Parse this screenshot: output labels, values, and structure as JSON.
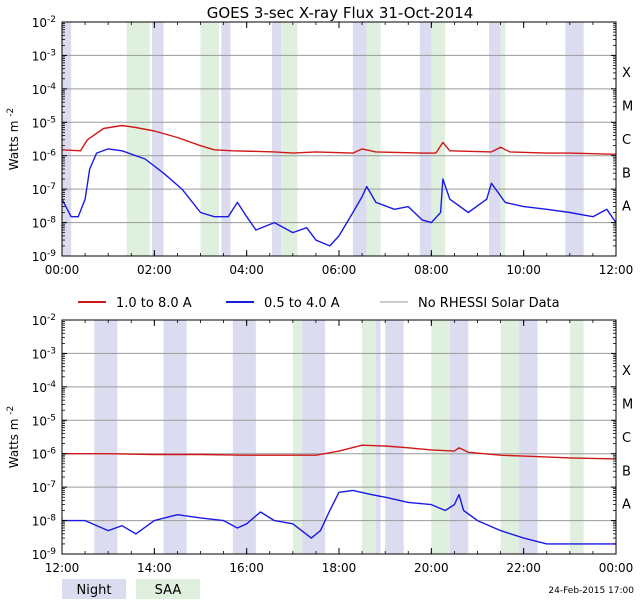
{
  "title": "GOES 3-sec X-ray Flux   31-Oct-2014",
  "footer_timestamp": "24-Feb-2015 17:00",
  "ylabel_main": "Watts m",
  "ylabel_sup": "-2",
  "legend": {
    "red": "1.0 to 8.0 A",
    "blue": "0.5 to 4.0 A",
    "gray": "No RHESSI Solar Data"
  },
  "bottom_legend": {
    "night": "Night",
    "saa": "SAA"
  },
  "colors": {
    "red": "#d01818",
    "blue": "#1a1ae6",
    "gray": "#999999",
    "night": "#dcdcf0",
    "saa": "#dff0df",
    "grid": "#9a9a9a",
    "axis": "#000000"
  },
  "chart_data": [
    {
      "type": "line",
      "panel": "top",
      "x_range_hours": [
        0,
        12
      ],
      "x_ticks": [
        "00:00",
        "02:00",
        "04:00",
        "06:00",
        "08:00",
        "10:00",
        "12:00"
      ],
      "y_scale": "log",
      "y_range": [
        1e-09,
        0.01
      ],
      "y_ticks": [
        "10^-9",
        "10^-8",
        "10^-7",
        "10^-6",
        "10^-5",
        "10^-4",
        "10^-3",
        "10^-2"
      ],
      "class_labels": [
        "A",
        "B",
        "C",
        "M",
        "X"
      ],
      "night_intervals": [
        [
          0.0,
          0.2
        ],
        [
          1.95,
          2.2
        ],
        [
          3.45,
          3.65
        ],
        [
          4.55,
          4.75
        ],
        [
          6.3,
          6.6
        ],
        [
          7.75,
          8.05
        ],
        [
          9.25,
          9.5
        ],
        [
          10.9,
          11.3
        ]
      ],
      "saa_intervals": [
        [
          1.4,
          1.9
        ],
        [
          3.0,
          3.4
        ],
        [
          4.75,
          5.1
        ],
        [
          6.6,
          6.9
        ],
        [
          8.0,
          8.3
        ],
        [
          9.5,
          9.6
        ]
      ],
      "series": [
        {
          "name": "1.0 to 8.0 A",
          "color_key": "red",
          "points": [
            [
              0.0,
              1.5e-06
            ],
            [
              0.4,
              1.4e-06
            ],
            [
              0.55,
              3e-06
            ],
            [
              0.9,
              6.5e-06
            ],
            [
              1.3,
              8e-06
            ],
            [
              1.6,
              7e-06
            ],
            [
              2.0,
              5.5e-06
            ],
            [
              2.5,
              3.5e-06
            ],
            [
              3.0,
              2e-06
            ],
            [
              3.3,
              1.5e-06
            ],
            [
              3.7,
              1.4e-06
            ],
            [
              4.6,
              1.3e-06
            ],
            [
              5.0,
              1.2e-06
            ],
            [
              5.5,
              1.3e-06
            ],
            [
              6.3,
              1.2e-06
            ],
            [
              6.5,
              1.6e-06
            ],
            [
              6.8,
              1.3e-06
            ],
            [
              7.8,
              1.2e-06
            ],
            [
              8.1,
              1.2e-06
            ],
            [
              8.25,
              2.5e-06
            ],
            [
              8.4,
              1.4e-06
            ],
            [
              9.3,
              1.3e-06
            ],
            [
              9.5,
              1.8e-06
            ],
            [
              9.7,
              1.3e-06
            ],
            [
              10.5,
              1.2e-06
            ],
            [
              11.0,
              1.2e-06
            ],
            [
              12.0,
              1.1e-06
            ]
          ]
        },
        {
          "name": "0.5 to 4.0 A",
          "color_key": "blue",
          "points": [
            [
              0.0,
              5e-08
            ],
            [
              0.2,
              1.5e-08
            ],
            [
              0.35,
              1.5e-08
            ],
            [
              0.5,
              5e-08
            ],
            [
              0.6,
              4e-07
            ],
            [
              0.75,
              1.2e-06
            ],
            [
              1.0,
              1.6e-06
            ],
            [
              1.3,
              1.4e-06
            ],
            [
              1.8,
              8e-07
            ],
            [
              2.2,
              3e-07
            ],
            [
              2.6,
              1e-07
            ],
            [
              3.0,
              2e-08
            ],
            [
              3.3,
              1.5e-08
            ],
            [
              3.6,
              1.5e-08
            ],
            [
              3.8,
              4e-08
            ],
            [
              4.0,
              1.5e-08
            ],
            [
              4.2,
              6e-09
            ],
            [
              4.6,
              1e-08
            ],
            [
              5.0,
              5e-09
            ],
            [
              5.3,
              7e-09
            ],
            [
              5.5,
              3e-09
            ],
            [
              5.8,
              2e-09
            ],
            [
              6.0,
              4e-09
            ],
            [
              6.3,
              2e-08
            ],
            [
              6.5,
              6e-08
            ],
            [
              6.6,
              1.2e-07
            ],
            [
              6.8,
              4e-08
            ],
            [
              7.2,
              2.5e-08
            ],
            [
              7.5,
              3e-08
            ],
            [
              7.8,
              1.2e-08
            ],
            [
              8.0,
              1e-08
            ],
            [
              8.2,
              2e-08
            ],
            [
              8.25,
              2e-07
            ],
            [
              8.4,
              5e-08
            ],
            [
              8.8,
              2e-08
            ],
            [
              9.2,
              5e-08
            ],
            [
              9.3,
              1.5e-07
            ],
            [
              9.6,
              4e-08
            ],
            [
              10.0,
              3e-08
            ],
            [
              10.5,
              2.5e-08
            ],
            [
              11.0,
              2e-08
            ],
            [
              11.5,
              1.5e-08
            ],
            [
              11.8,
              2.5e-08
            ],
            [
              12.0,
              1e-08
            ]
          ]
        }
      ]
    },
    {
      "type": "line",
      "panel": "bottom",
      "x_range_hours": [
        12,
        24
      ],
      "x_ticks": [
        "12:00",
        "14:00",
        "16:00",
        "18:00",
        "20:00",
        "22:00",
        "00:00"
      ],
      "y_scale": "log",
      "y_range": [
        1e-09,
        0.01
      ],
      "y_ticks": [
        "10^-9",
        "10^-8",
        "10^-7",
        "10^-6",
        "10^-5",
        "10^-4",
        "10^-3",
        "10^-2"
      ],
      "class_labels": [
        "A",
        "B",
        "C",
        "M",
        "X"
      ],
      "night_intervals": [
        [
          12.7,
          13.2
        ],
        [
          14.2,
          14.7
        ],
        [
          15.7,
          16.2
        ],
        [
          17.2,
          17.7
        ],
        [
          18.5,
          18.9
        ],
        [
          19.0,
          19.4
        ],
        [
          20.4,
          20.8
        ],
        [
          21.9,
          22.3
        ]
      ],
      "saa_intervals": [
        [
          17.0,
          17.2
        ],
        [
          18.5,
          18.8
        ],
        [
          20.0,
          20.4
        ],
        [
          21.5,
          21.9
        ],
        [
          23.0,
          23.3
        ]
      ],
      "series": [
        {
          "name": "1.0 to 8.0 A",
          "color_key": "red",
          "points": [
            [
              12.0,
              1e-06
            ],
            [
              13.0,
              1e-06
            ],
            [
              14.0,
              9.5e-07
            ],
            [
              15.0,
              9.5e-07
            ],
            [
              16.0,
              9e-07
            ],
            [
              17.0,
              9e-07
            ],
            [
              17.5,
              9e-07
            ],
            [
              18.0,
              1.2e-06
            ],
            [
              18.5,
              1.8e-06
            ],
            [
              19.0,
              1.7e-06
            ],
            [
              19.5,
              1.5e-06
            ],
            [
              20.0,
              1.3e-06
            ],
            [
              20.5,
              1.2e-06
            ],
            [
              20.6,
              1.5e-06
            ],
            [
              20.8,
              1.1e-06
            ],
            [
              21.5,
              9e-07
            ],
            [
              22.0,
              8.5e-07
            ],
            [
              23.0,
              7.5e-07
            ],
            [
              24.0,
              7e-07
            ]
          ]
        },
        {
          "name": "0.5 to 4.0 A",
          "color_key": "blue",
          "points": [
            [
              12.0,
              1e-08
            ],
            [
              12.5,
              1e-08
            ],
            [
              13.0,
              5e-09
            ],
            [
              13.3,
              7e-09
            ],
            [
              13.6,
              4e-09
            ],
            [
              14.0,
              1e-08
            ],
            [
              14.5,
              1.5e-08
            ],
            [
              15.0,
              1.2e-08
            ],
            [
              15.5,
              1e-08
            ],
            [
              15.8,
              6e-09
            ],
            [
              16.0,
              8e-09
            ],
            [
              16.3,
              1.8e-08
            ],
            [
              16.6,
              1e-08
            ],
            [
              17.0,
              8e-09
            ],
            [
              17.4,
              3e-09
            ],
            [
              17.6,
              5e-09
            ],
            [
              17.8,
              2e-08
            ],
            [
              18.0,
              7e-08
            ],
            [
              18.3,
              8e-08
            ],
            [
              18.7,
              6e-08
            ],
            [
              19.0,
              5e-08
            ],
            [
              19.5,
              3.5e-08
            ],
            [
              20.0,
              3e-08
            ],
            [
              20.3,
              2e-08
            ],
            [
              20.5,
              3e-08
            ],
            [
              20.6,
              6e-08
            ],
            [
              20.7,
              2e-08
            ],
            [
              21.0,
              1e-08
            ],
            [
              21.5,
              5e-09
            ],
            [
              22.0,
              3e-09
            ],
            [
              22.5,
              2e-09
            ],
            [
              23.0,
              2e-09
            ],
            [
              23.5,
              2e-09
            ],
            [
              24.0,
              2e-09
            ]
          ]
        }
      ]
    }
  ]
}
